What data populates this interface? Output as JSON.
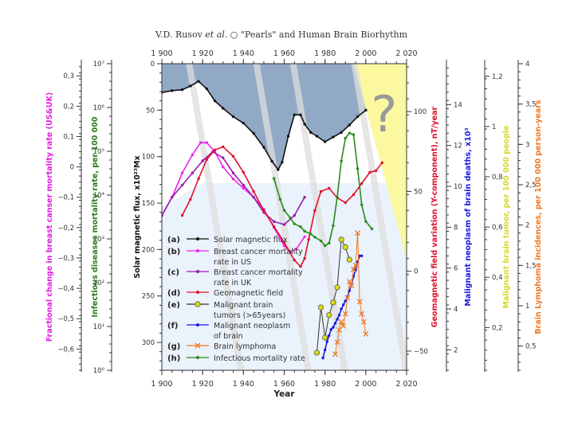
{
  "header": {
    "author": "V.D. Rusov",
    "etal": "et al.",
    "separator": "○",
    "paper_title": "\"Pearls\" and Human Brain Biorhythm"
  },
  "chart_data": {
    "type": "line",
    "title": "",
    "xlabel": "Year",
    "x_range": [
      1900,
      2020
    ],
    "x_ticks": [
      "1 900",
      "1 920",
      "1 940",
      "1 960",
      "1 980",
      "2 000",
      "2 020"
    ],
    "x_tick_values": [
      1900,
      1920,
      1940,
      1960,
      1980,
      2000,
      2020
    ],
    "question_mark": "?",
    "axes": [
      {
        "id": "solar",
        "label": "Solar magnetic flux, x10²³Mx",
        "side": "left-inner",
        "color": "#111111",
        "range": [
          0,
          330
        ],
        "inverted": true,
        "ticks": [
          "0",
          "50",
          "100",
          "150",
          "200",
          "250",
          "300"
        ],
        "tick_values": [
          0,
          50,
          100,
          150,
          200,
          250,
          300
        ]
      },
      {
        "id": "infect",
        "label": "Infectious diseases mortality rate, per 100 000",
        "side": "left-middle",
        "color": "#2a7a1a",
        "scale": "log",
        "range": [
          1,
          10000000
        ],
        "ticks": [
          "10⁰",
          "10¹",
          "10²",
          "10³",
          "10⁴",
          "10⁵",
          "10⁶",
          "10⁷"
        ]
      },
      {
        "id": "breast",
        "label": "Fractional change in breast canser mortality rate (US&UK)",
        "side": "left-outer",
        "color": "#e020e0",
        "range": [
          -0.67,
          0.34
        ],
        "ticks": [
          "0,3",
          "0,2",
          "0,1",
          "0",
          "−0,1",
          "−0,2",
          "−0,3",
          "−0,4",
          "−0,5",
          "−0,6"
        ],
        "tick_values": [
          0.3,
          0.2,
          0.1,
          0,
          -0.1,
          -0.2,
          -0.3,
          -0.4,
          -0.5,
          -0.6
        ]
      },
      {
        "id": "geomag",
        "label": "Geomagnetic field variation (Y-component), nT/year",
        "side": "right-1",
        "color": "#e0102a",
        "range": [
          -62,
          130
        ],
        "ticks": [
          "100",
          "50",
          "0",
          "−50"
        ],
        "tick_values": [
          100,
          50,
          0,
          -50
        ]
      },
      {
        "id": "neoplasm",
        "label": "Malignant neoplasm of brain deaths, x10³",
        "side": "right-2",
        "color": "#1a1ae0",
        "range": [
          1,
          16
        ],
        "ticks": [
          "14",
          "12",
          "10",
          "8",
          "6",
          "4",
          "2"
        ],
        "tick_values": [
          14,
          12,
          10,
          8,
          6,
          4,
          2
        ]
      },
      {
        "id": "tumor",
        "label": "Malignant brain tumor, per 100 000 people",
        "side": "right-3",
        "color": "#d8d820",
        "range": [
          0.03,
          1.25
        ],
        "ticks": [
          "1,2",
          "1",
          "0,8",
          "0,6",
          "0,4",
          "0,2"
        ],
        "tick_values": [
          1.2,
          1.0,
          0.8,
          0.6,
          0.4,
          0.2
        ]
      },
      {
        "id": "lymph",
        "label": "Brain Lymphoma incidences, per 100 000 person-years",
        "side": "right-4",
        "color": "#f07820",
        "range": [
          0.2,
          4
        ],
        "ticks": [
          "4",
          "3,5",
          "3",
          "2,5",
          "2",
          "1,5",
          "1",
          "0,5"
        ],
        "tick_values": [
          4,
          3.5,
          3,
          2.5,
          2,
          1.5,
          1,
          0.5
        ]
      }
    ],
    "series": [
      {
        "key": "a",
        "name": "Solar magnetic flux",
        "color": "#111111",
        "marker": "dot",
        "axis": "solar",
        "x": [
          1900,
          1905,
          1910,
          1914,
          1918,
          1922,
          1926,
          1930,
          1935,
          1940,
          1945,
          1950,
          1954,
          1957,
          1959,
          1962,
          1965,
          1968,
          1970,
          1973,
          1976,
          1980,
          1984,
          1988,
          1992,
          1996,
          2000
        ],
        "y": [
          31,
          29,
          28,
          24,
          19,
          27,
          40,
          48,
          57,
          64,
          75,
          90,
          105,
          114,
          106,
          78,
          55,
          55,
          65,
          74,
          78,
          84,
          79,
          74,
          66,
          57,
          50
        ]
      },
      {
        "key": "b",
        "name": "Breast cancer mortality rate in US",
        "color": "#ee22ee",
        "marker": "dot",
        "axis": "breast",
        "x": [
          1900,
          1905,
          1910,
          1915,
          1919,
          1922,
          1926,
          1930,
          1935,
          1940,
          1945,
          1950,
          1955,
          1960,
          1963,
          1966,
          1970
        ],
        "y": [
          -0.16,
          -0.1,
          -0.02,
          0.04,
          0.08,
          0.08,
          0.05,
          0.0,
          -0.04,
          -0.07,
          -0.1,
          -0.14,
          -0.2,
          -0.26,
          -0.28,
          -0.27,
          -0.23
        ]
      },
      {
        "key": "c",
        "name": "Breast cancer mortality rate in UK",
        "color": "#9a1aaa",
        "marker": "dot",
        "axis": "breast",
        "x": [
          1900,
          1905,
          1910,
          1915,
          1920,
          1925,
          1930,
          1935,
          1940,
          1945,
          1950,
          1955,
          1960,
          1965,
          1970
        ],
        "y": [
          -0.16,
          -0.1,
          -0.06,
          -0.02,
          0.02,
          0.05,
          0.03,
          -0.02,
          -0.06,
          -0.1,
          -0.15,
          -0.18,
          -0.19,
          -0.16,
          -0.1
        ]
      },
      {
        "key": "d",
        "name": "Geomagnetic field",
        "color": "#e0102a",
        "marker": "dot",
        "axis": "geomag",
        "x": [
          1910,
          1914,
          1918,
          1922,
          1926,
          1930,
          1935,
          1940,
          1945,
          1950,
          1955,
          1960,
          1965,
          1968,
          1970,
          1972,
          1975,
          1978,
          1982,
          1986,
          1990,
          1994,
          1998,
          2002,
          2005,
          2008
        ],
        "y": [
          35,
          45,
          58,
          70,
          76,
          78,
          72,
          62,
          50,
          38,
          28,
          18,
          7,
          3,
          8,
          20,
          38,
          50,
          52,
          46,
          43,
          48,
          55,
          62,
          63,
          68
        ]
      },
      {
        "key": "e",
        "name": "Malignant brain tumors (>65years)",
        "color": "#dddd10",
        "marker": "circle",
        "line": "#333333",
        "axis": "tumor",
        "x": [
          1976,
          1978,
          1980,
          1982,
          1984,
          1986,
          1988,
          1990,
          1992
        ],
        "y": [
          0.1,
          0.28,
          0.16,
          0.25,
          0.3,
          0.36,
          0.55,
          0.52,
          0.47
        ]
      },
      {
        "key": "f",
        "name": "Malignant neoplasm of brain",
        "color": "#1a1ae0",
        "marker": "dot",
        "axis": "neoplasm",
        "x": [
          1979,
          1980,
          1981,
          1982,
          1983,
          1984,
          1985,
          1986,
          1987,
          1988,
          1989,
          1990,
          1991,
          1992,
          1993,
          1994,
          1995,
          1996,
          1997,
          1998
        ],
        "y": [
          1.6,
          2.0,
          2.4,
          2.7,
          3.0,
          3.1,
          3.3,
          3.5,
          3.7,
          4.0,
          4.2,
          4.4,
          4.6,
          4.9,
          5.2,
          5.6,
          5.9,
          6.3,
          6.6,
          6.6
        ]
      },
      {
        "key": "g",
        "name": "Brain lymphoma",
        "color": "#f07820",
        "marker": "x",
        "axis": "lymph",
        "x": [
          1985,
          1986,
          1987,
          1988,
          1989,
          1990,
          1991,
          1992,
          1993,
          1994,
          1995,
          1996,
          1997,
          1998,
          1999,
          2000
        ],
        "y": [
          0.4,
          0.55,
          0.7,
          0.8,
          0.75,
          0.9,
          1.1,
          1.3,
          1.25,
          1.45,
          1.5,
          1.9,
          1.05,
          0.9,
          0.8,
          0.65
        ]
      },
      {
        "key": "h",
        "name": "Infectious mortality rate",
        "color": "#2a8a1a",
        "marker": "dot",
        "axis": "infect",
        "x": [
          1955,
          1958,
          1960,
          1963,
          1965,
          1968,
          1970,
          1973,
          1975,
          1978,
          1980,
          1982,
          1984,
          1986,
          1988,
          1990,
          1992,
          1994,
          1996,
          1998,
          2000,
          2003
        ],
        "y": [
          24000,
          8000,
          4500,
          3000,
          2200,
          1900,
          1500,
          1300,
          1100,
          900,
          700,
          800,
          2000,
          9000,
          60000,
          200000,
          260000,
          240000,
          40000,
          6000,
          2500,
          1700
        ]
      }
    ],
    "legend": {
      "placement": "bottom-left",
      "entries": [
        {
          "tag": "(a)",
          "lines": [
            "Solar magnetic flux"
          ]
        },
        {
          "tag": "(b)",
          "lines": [
            "Breast cancer mortality",
            "rate in US"
          ]
        },
        {
          "tag": "(c)",
          "lines": [
            "Breast cancer mortality",
            "rate in UK"
          ]
        },
        {
          "tag": "(d)",
          "lines": [
            "Geomagnetic field"
          ]
        },
        {
          "tag": "(e)",
          "lines": [
            "Malignant brain",
            "tumors (>65years)"
          ]
        },
        {
          "tag": "(f)",
          "lines": [
            "Malignant neoplasm",
            "of brain"
          ]
        },
        {
          "tag": "(g)",
          "lines": [
            "Brain lymphoma"
          ]
        },
        {
          "tag": "(h)",
          "lines": [
            "Infectious mortality rate"
          ]
        }
      ]
    },
    "shaded_regions": [
      {
        "name": "flux-envelope",
        "color": "#92a9c6"
      },
      {
        "name": "future-uncertainty",
        "color": "#fbf8a0"
      },
      {
        "name": "lower-background",
        "color": "#eaf2fb"
      }
    ],
    "diagonal_bands_start_years": [
      1913,
      1946,
      1964,
      1994
    ]
  }
}
